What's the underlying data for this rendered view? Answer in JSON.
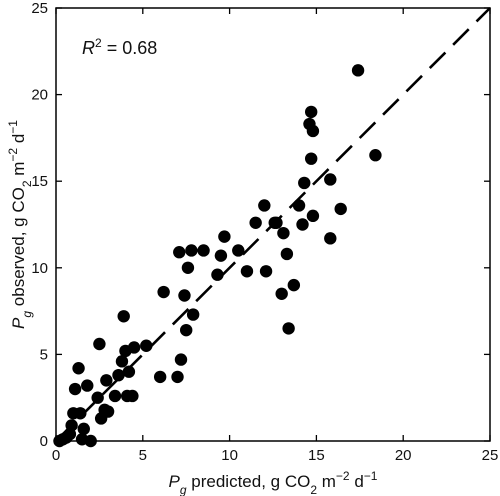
{
  "chart_data": {
    "type": "scatter",
    "xlim": [
      0,
      25
    ],
    "ylim": [
      0,
      25
    ],
    "xticks": [
      "0",
      "5",
      "10",
      "15",
      "20",
      "25"
    ],
    "yticks": [
      "0",
      "5",
      "10",
      "15",
      "20",
      "25"
    ],
    "xlabel": {
      "var": "P",
      "sub": "g",
      "text": " predicted, g CO",
      "sub2": "2",
      "unit": " m",
      "sup": "−2",
      "unit2": " d",
      "sup2": "−1"
    },
    "ylabel": {
      "var": "P",
      "sub": "g",
      "text": " observed, g CO",
      "sub2": "2",
      "unit": " m",
      "sup": "−2",
      "unit2": " d",
      "sup2": "−1"
    },
    "annotation": {
      "var": "R",
      "sup": "2",
      "text": " = 0.68"
    },
    "reference_line": {
      "style": "dashed",
      "from": [
        0,
        0
      ],
      "to": [
        25,
        25
      ]
    },
    "grid": false,
    "marker_color": "#000000",
    "points": [
      [
        0.2,
        0.0
      ],
      [
        0.4,
        0.1
      ],
      [
        0.6,
        0.2
      ],
      [
        0.8,
        0.4
      ],
      [
        1.5,
        0.1
      ],
      [
        2.0,
        0.0
      ],
      [
        0.9,
        0.9
      ],
      [
        1.0,
        1.6
      ],
      [
        1.1,
        3.0
      ],
      [
        1.3,
        4.2
      ],
      [
        1.4,
        1.6
      ],
      [
        1.6,
        0.7
      ],
      [
        1.8,
        3.2
      ],
      [
        2.4,
        2.5
      ],
      [
        2.5,
        5.6
      ],
      [
        2.6,
        1.3
      ],
      [
        2.8,
        1.8
      ],
      [
        2.9,
        3.5
      ],
      [
        3.0,
        1.7
      ],
      [
        3.4,
        2.6
      ],
      [
        3.6,
        3.8
      ],
      [
        3.8,
        4.6
      ],
      [
        3.9,
        7.2
      ],
      [
        4.0,
        5.2
      ],
      [
        4.1,
        2.6
      ],
      [
        4.2,
        4.0
      ],
      [
        4.4,
        2.6
      ],
      [
        4.5,
        5.4
      ],
      [
        5.2,
        5.5
      ],
      [
        6.0,
        3.7
      ],
      [
        6.2,
        8.6
      ],
      [
        7.0,
        3.7
      ],
      [
        7.1,
        10.9
      ],
      [
        7.2,
        4.7
      ],
      [
        7.4,
        8.4
      ],
      [
        7.5,
        6.4
      ],
      [
        7.6,
        10.0
      ],
      [
        7.9,
        7.3
      ],
      [
        7.8,
        11.0
      ],
      [
        8.5,
        11.0
      ],
      [
        9.3,
        9.6
      ],
      [
        9.5,
        10.7
      ],
      [
        9.7,
        11.8
      ],
      [
        10.5,
        11.0
      ],
      [
        11.0,
        9.8
      ],
      [
        11.5,
        12.6
      ],
      [
        12.0,
        13.6
      ],
      [
        12.1,
        9.8
      ],
      [
        12.6,
        12.6
      ],
      [
        12.7,
        12.6
      ],
      [
        13.0,
        8.5
      ],
      [
        13.1,
        12.0
      ],
      [
        13.3,
        10.8
      ],
      [
        13.4,
        6.5
      ],
      [
        13.7,
        9.0
      ],
      [
        14.0,
        13.6
      ],
      [
        14.2,
        12.5
      ],
      [
        14.3,
        14.9
      ],
      [
        14.6,
        18.3
      ],
      [
        14.7,
        16.3
      ],
      [
        14.7,
        19.0
      ],
      [
        14.8,
        13.0
      ],
      [
        14.8,
        17.9
      ],
      [
        15.8,
        11.7
      ],
      [
        15.8,
        15.1
      ],
      [
        16.4,
        13.4
      ],
      [
        17.4,
        21.4
      ],
      [
        18.4,
        16.5
      ]
    ]
  }
}
